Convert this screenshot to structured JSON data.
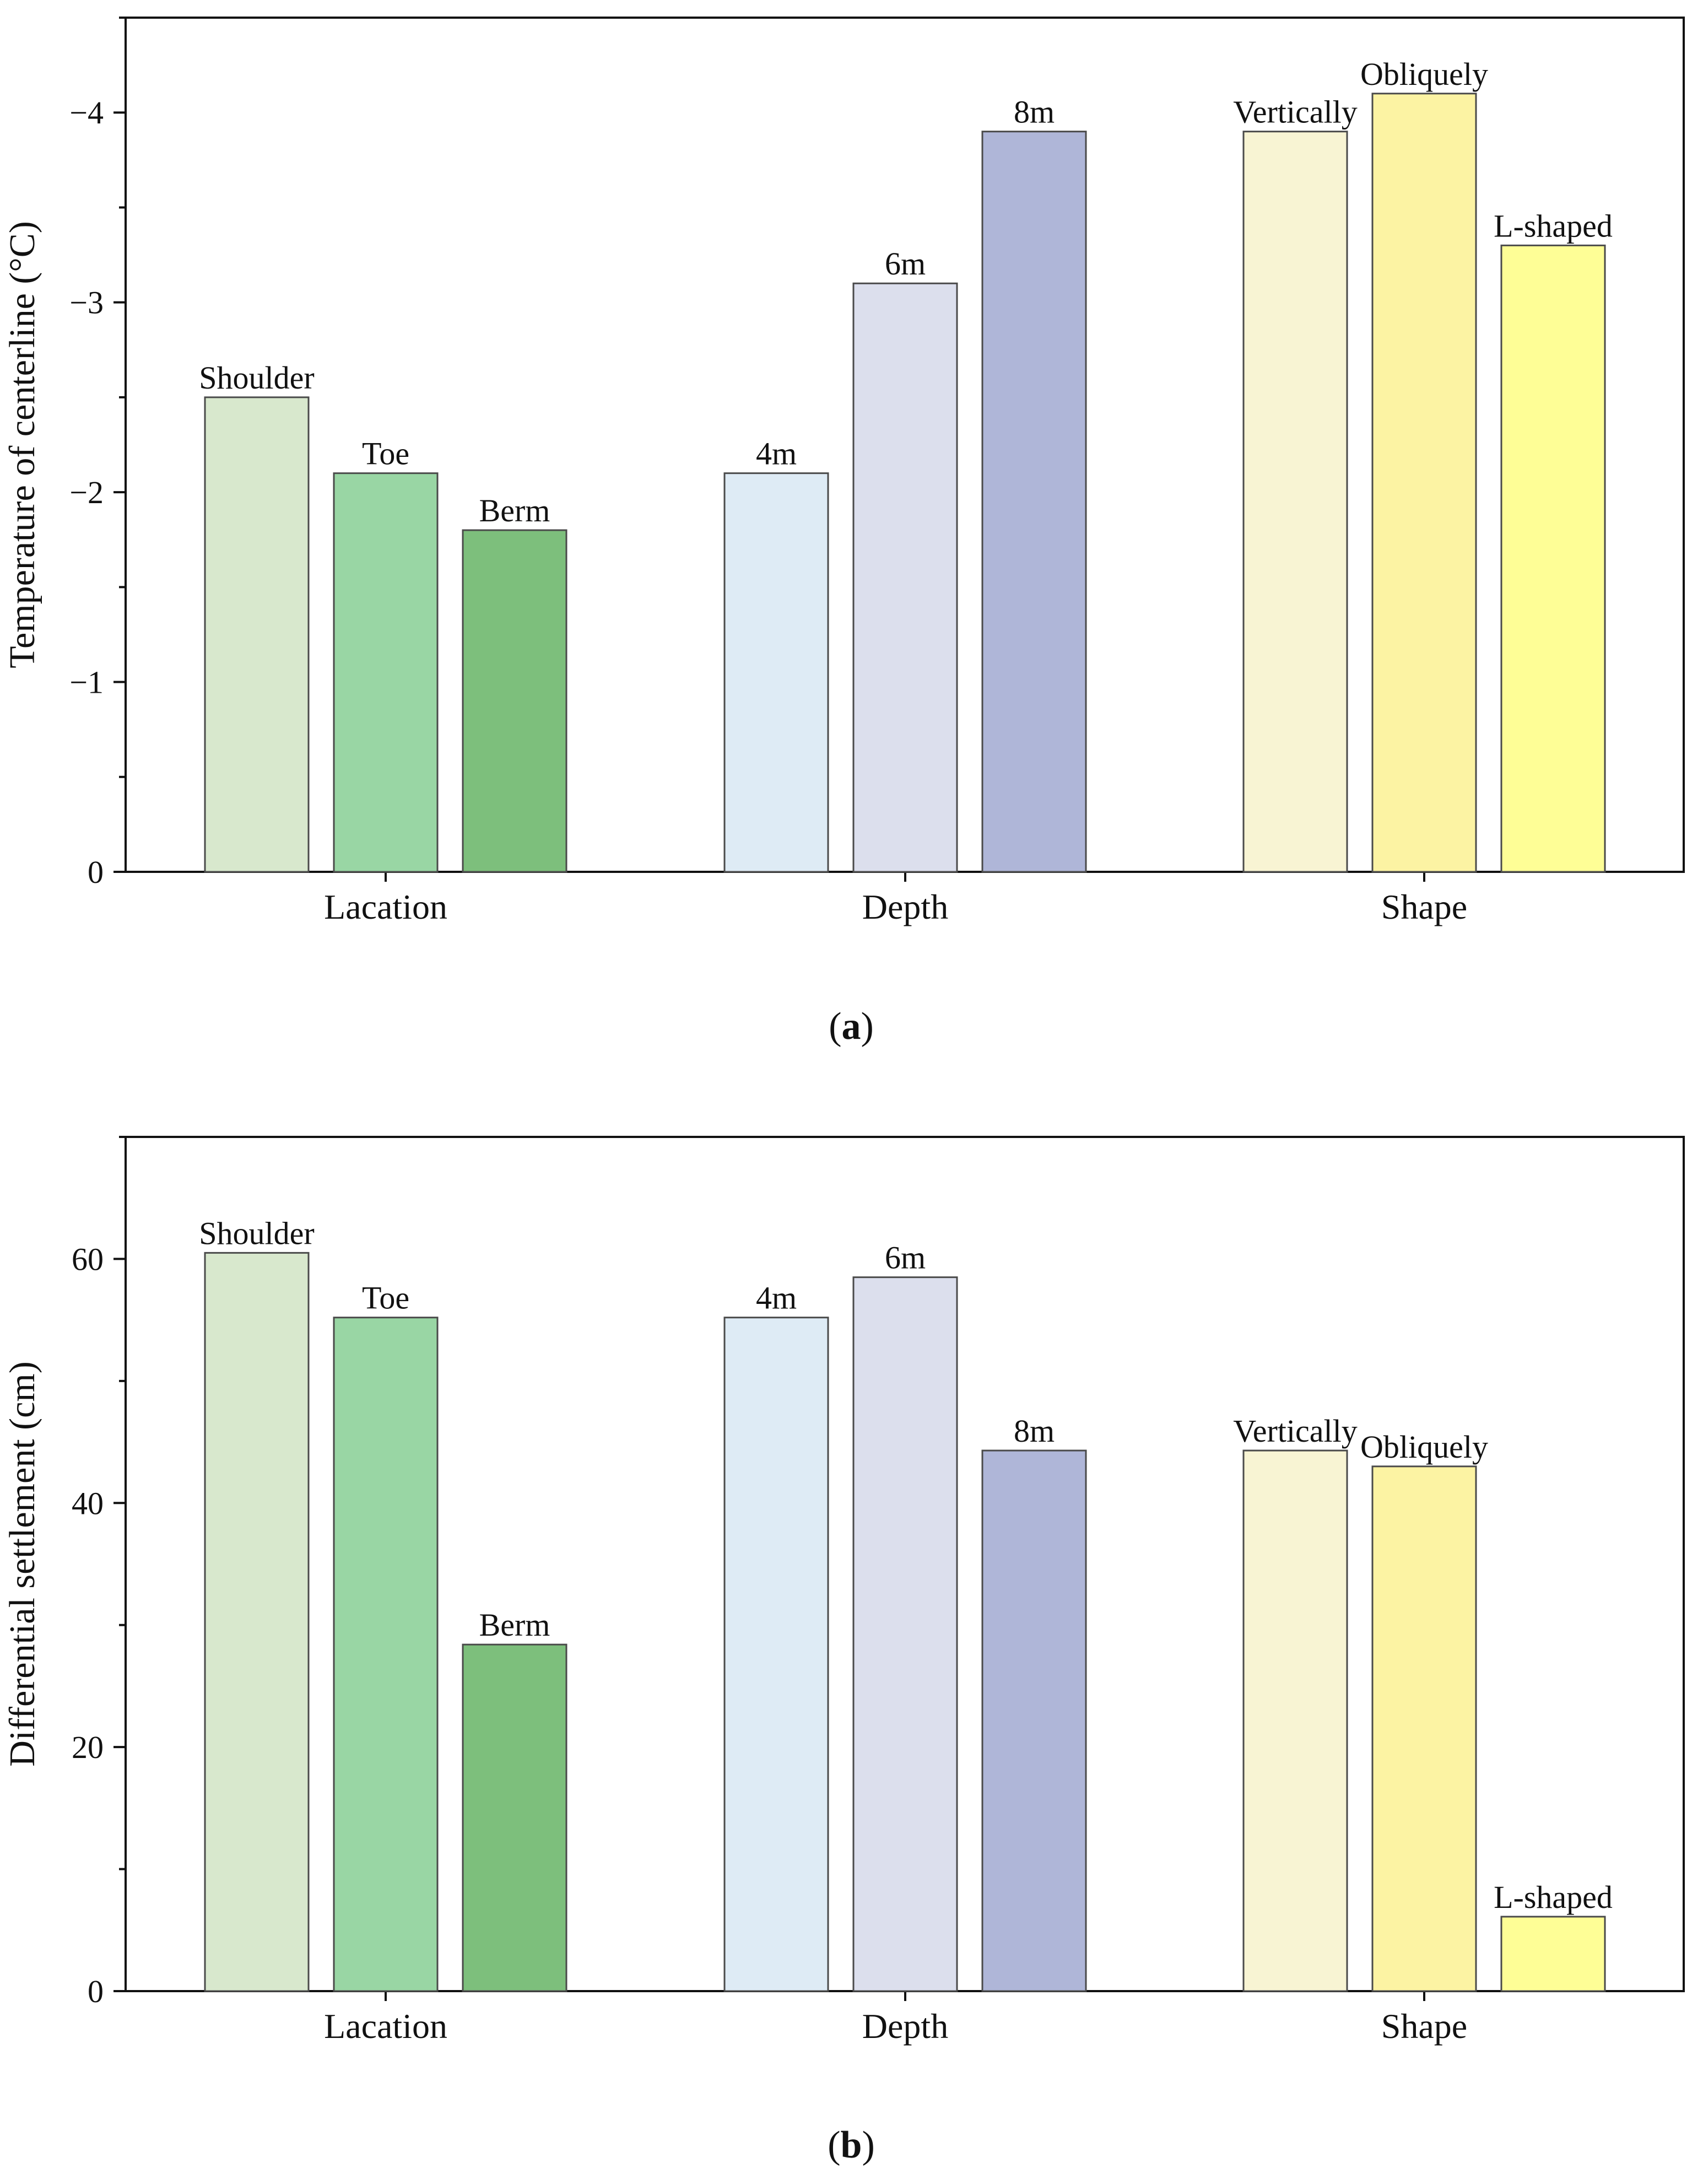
{
  "chart_data": [
    {
      "panel": "a",
      "type": "bar",
      "caption_label": "a",
      "ylabel": "Temperature of centerline (°C)",
      "ylim": [
        0,
        -4.5
      ],
      "yaxis_inverted": true,
      "yticks": [
        0,
        -1,
        -2,
        -3,
        -4
      ],
      "ytick_labels": [
        "0",
        "−1",
        "−2",
        "−3",
        "−4"
      ],
      "categories": [
        "Lacation",
        "Depth",
        "Shape"
      ],
      "groups": [
        {
          "category": "Lacation",
          "bars": [
            {
              "label": "Shoulder",
              "value": -2.5,
              "color": "#d8e8cd"
            },
            {
              "label": "Toe",
              "value": -2.1,
              "color": "#99d6a4"
            },
            {
              "label": "Berm",
              "value": -1.8,
              "color": "#7dbf7c"
            }
          ]
        },
        {
          "category": "Depth",
          "bars": [
            {
              "label": "4m",
              "value": -2.1,
              "color": "#deebf5"
            },
            {
              "label": "6m",
              "value": -3.1,
              "color": "#dcdfed"
            },
            {
              "label": "8m",
              "value": -3.9,
              "color": "#afb6d8"
            }
          ]
        },
        {
          "category": "Shape",
          "bars": [
            {
              "label": "Vertically",
              "value": -3.9,
              "color": "#f8f4d3"
            },
            {
              "label": "Obliquely",
              "value": -4.1,
              "color": "#fcf3a3"
            },
            {
              "label": "L-shaped",
              "value": -3.3,
              "color": "#fefe96"
            }
          ]
        }
      ]
    },
    {
      "panel": "b",
      "type": "bar",
      "caption_label": "b",
      "ylabel": "Differential settlement (cm)",
      "ylim": [
        0,
        70
      ],
      "yaxis_inverted": false,
      "yticks": [
        0,
        20,
        40,
        60
      ],
      "ytick_labels": [
        "0",
        "20",
        "40",
        "60"
      ],
      "categories": [
        "Lacation",
        "Depth",
        "Shape"
      ],
      "groups": [
        {
          "category": "Lacation",
          "bars": [
            {
              "label": "Shoulder",
              "value": 60.5,
              "color": "#d8e8cd"
            },
            {
              "label": "Toe",
              "value": 55.2,
              "color": "#99d6a4"
            },
            {
              "label": "Berm",
              "value": 28.4,
              "color": "#7dbf7c"
            }
          ]
        },
        {
          "category": "Depth",
          "bars": [
            {
              "label": "4m",
              "value": 55.2,
              "color": "#deebf5"
            },
            {
              "label": "6m",
              "value": 58.5,
              "color": "#dcdfed"
            },
            {
              "label": "8m",
              "value": 44.3,
              "color": "#afb6d8"
            }
          ]
        },
        {
          "category": "Shape",
          "bars": [
            {
              "label": "Vertically",
              "value": 44.3,
              "color": "#f8f4d3"
            },
            {
              "label": "Obliquely",
              "value": 43.0,
              "color": "#fcf3a3"
            },
            {
              "label": "L-shaped",
              "value": 6.1,
              "color": "#fefe96"
            }
          ]
        }
      ]
    }
  ]
}
